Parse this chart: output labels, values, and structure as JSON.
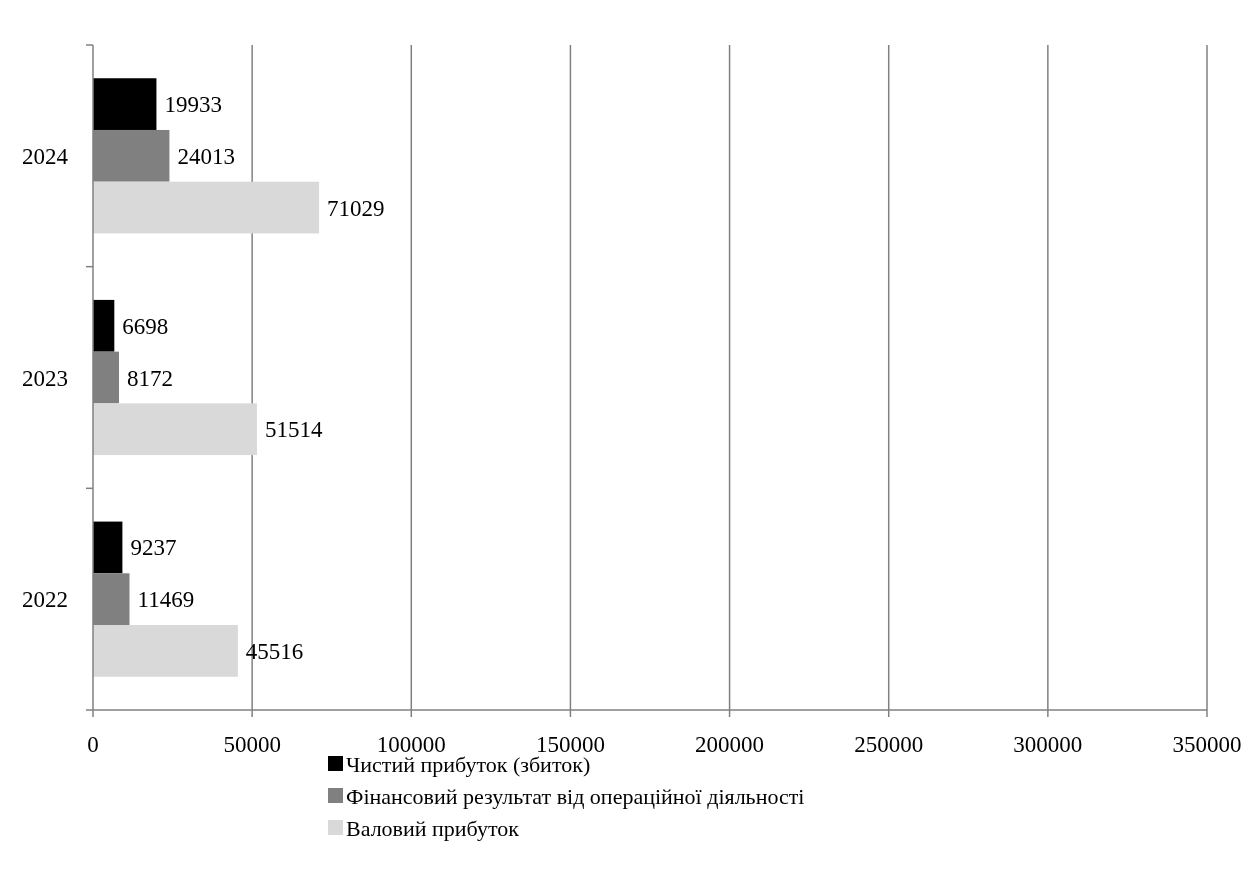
{
  "chart_data": {
    "type": "bar",
    "orientation": "horizontal",
    "categories": [
      "2024",
      "2023",
      "2022"
    ],
    "series": [
      {
        "name": "Чистий прибуток (збиток)",
        "color": "#000000",
        "values": [
          19933,
          6698,
          9237
        ]
      },
      {
        "name": "Фінансовий результат від операційної діяльності",
        "color": "#808080",
        "values": [
          24013,
          8172,
          11469
        ]
      },
      {
        "name": "Валовий прибуток",
        "color": "#d9d9d9",
        "values": [
          71029,
          51514,
          45516
        ]
      }
    ],
    "xlim": [
      0,
      350000
    ],
    "xticks": [
      0,
      50000,
      100000,
      150000,
      200000,
      250000,
      300000,
      350000
    ],
    "grid": "x",
    "legend": "bottom",
    "data_labels": true
  }
}
